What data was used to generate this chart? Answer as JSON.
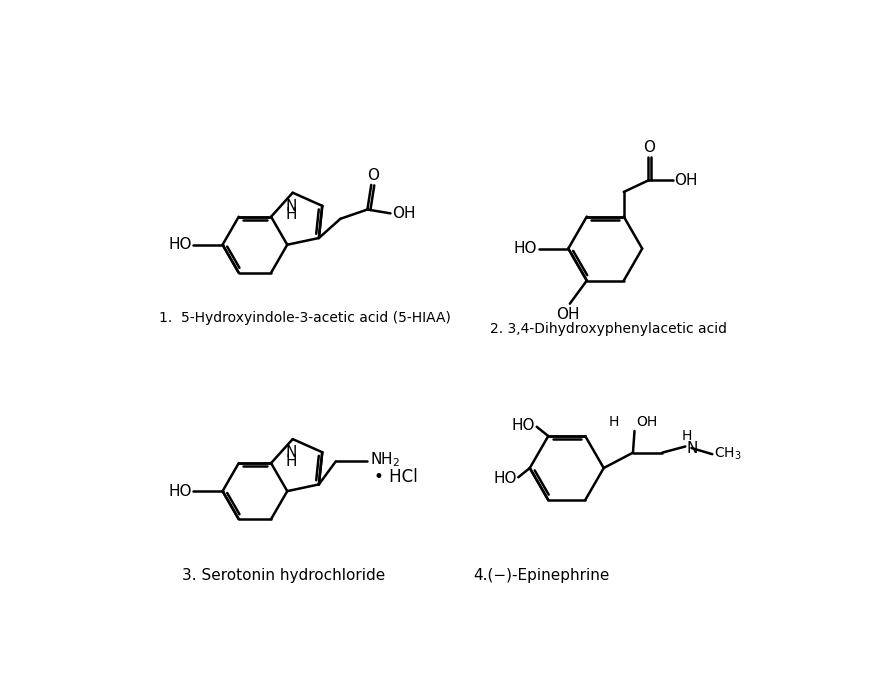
{
  "bg_color": "#ffffff",
  "line_color": "#000000",
  "line_width": 1.8,
  "label1": "1.  5-Hydroxyindole-3-acetic acid (5-HIAA)",
  "label2": "2. 3,4-Dihydroxyphenylacetic acid",
  "label3": "3. Serotonin hydrochloride",
  "label4": "4.(−)-Epinephrine",
  "font_size_atom": 11,
  "font_size_label": 10
}
